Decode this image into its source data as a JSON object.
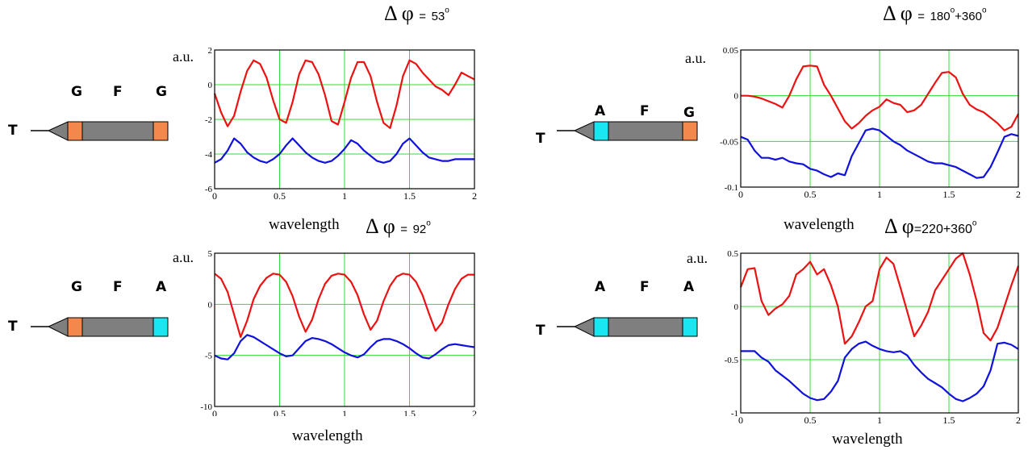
{
  "colors": {
    "red": "#ee1111",
    "blue": "#1111dd",
    "grid": "#33dd33",
    "orange": "#f4874b",
    "cyan": "#19e6f0",
    "body": "#7f7f7f"
  },
  "panels": [
    {
      "id": "p1",
      "molecule": {
        "end": "T",
        "labels": [
          "G",
          "F",
          "G"
        ],
        "left_block": "orange",
        "right_block": "orange"
      },
      "phase": {
        "symbol": "Δ φ",
        "eq": "=",
        "value": "53",
        "deg": "o"
      },
      "ylabel": "a.u.",
      "xlabel": "wavelength",
      "chart_data": {
        "type": "line",
        "xlim": [
          0,
          2
        ],
        "ylim": [
          -6,
          2
        ],
        "xticks": [
          "0",
          "0.5",
          "1",
          "1.5",
          "2"
        ],
        "yticks": [
          "2",
          "0",
          "-2",
          "-4",
          "-6"
        ],
        "ytick_values": [
          2,
          0,
          -2,
          -4,
          -6
        ],
        "grid": true,
        "series": [
          {
            "color": "red",
            "x": [
              0,
              0.05,
              0.1,
              0.15,
              0.2,
              0.25,
              0.3,
              0.35,
              0.4,
              0.45,
              0.5,
              0.55,
              0.6,
              0.65,
              0.7,
              0.75,
              0.8,
              0.85,
              0.9,
              0.95,
              1.0,
              1.05,
              1.1,
              1.15,
              1.2,
              1.25,
              1.3,
              1.35,
              1.4,
              1.45,
              1.5,
              1.55,
              1.6,
              1.65,
              1.7,
              1.75,
              1.8,
              1.85,
              1.9,
              1.95,
              2.0
            ],
            "y": [
              -0.5,
              -1.6,
              -2.4,
              -1.8,
              -0.4,
              0.8,
              1.4,
              1.2,
              0.4,
              -0.9,
              -2.0,
              -2.2,
              -1.0,
              0.6,
              1.4,
              1.3,
              0.6,
              -0.6,
              -2.1,
              -2.3,
              -1.0,
              0.4,
              1.3,
              1.3,
              0.5,
              -1.0,
              -2.2,
              -2.5,
              -1.2,
              0.5,
              1.4,
              1.2,
              0.7,
              0.3,
              -0.1,
              -0.3,
              -0.6,
              0.0,
              0.7,
              0.5,
              0.3
            ]
          },
          {
            "color": "blue",
            "x": [
              0,
              0.05,
              0.1,
              0.15,
              0.2,
              0.25,
              0.3,
              0.35,
              0.4,
              0.45,
              0.5,
              0.55,
              0.6,
              0.65,
              0.7,
              0.75,
              0.8,
              0.85,
              0.9,
              0.95,
              1.0,
              1.05,
              1.1,
              1.15,
              1.2,
              1.25,
              1.3,
              1.35,
              1.4,
              1.45,
              1.5,
              1.55,
              1.6,
              1.65,
              1.7,
              1.75,
              1.8,
              1.85,
              1.9,
              1.95,
              2.0
            ],
            "y": [
              -4.5,
              -4.3,
              -3.8,
              -3.1,
              -3.4,
              -3.9,
              -4.2,
              -4.4,
              -4.5,
              -4.3,
              -4.0,
              -3.5,
              -3.1,
              -3.5,
              -3.9,
              -4.2,
              -4.4,
              -4.5,
              -4.4,
              -4.1,
              -3.7,
              -3.2,
              -3.4,
              -3.8,
              -4.1,
              -4.4,
              -4.5,
              -4.4,
              -4.0,
              -3.4,
              -3.1,
              -3.5,
              -3.9,
              -4.2,
              -4.3,
              -4.4,
              -4.4,
              -4.3,
              -4.3,
              -4.3,
              -4.3
            ]
          }
        ]
      }
    },
    {
      "id": "p2",
      "molecule": {
        "end": "T",
        "labels": [
          "A",
          "F",
          "G"
        ],
        "left_block": "cyan",
        "right_block": "orange"
      },
      "phase": {
        "symbol": "Δ φ",
        "eq": "=",
        "value": "180",
        "deg": "o",
        "extra": "+360",
        "extra_deg": "o"
      },
      "ylabel": "a.u.",
      "xlabel": "wavelength",
      "chart_data": {
        "type": "line",
        "xlim": [
          0,
          2
        ],
        "ylim": [
          -0.1,
          0.05
        ],
        "xticks": [
          "0",
          "0.5",
          "1",
          "1.5",
          "2"
        ],
        "yticks": [
          "0.05",
          "0",
          "-0.05",
          "-0.1"
        ],
        "ytick_values": [
          0.05,
          0,
          -0.05,
          -0.1
        ],
        "grid": true,
        "series": [
          {
            "color": "red",
            "x": [
              0,
              0.05,
              0.1,
              0.15,
              0.2,
              0.25,
              0.3,
              0.35,
              0.4,
              0.45,
              0.5,
              0.55,
              0.6,
              0.65,
              0.7,
              0.75,
              0.8,
              0.85,
              0.9,
              0.95,
              1.0,
              1.05,
              1.1,
              1.15,
              1.2,
              1.25,
              1.3,
              1.35,
              1.4,
              1.45,
              1.5,
              1.55,
              1.6,
              1.65,
              1.7,
              1.75,
              1.8,
              1.85,
              1.9,
              1.95,
              2.0
            ],
            "y": [
              0.0,
              0.0,
              -0.001,
              -0.003,
              -0.006,
              -0.009,
              -0.013,
              0.0,
              0.018,
              0.032,
              0.033,
              0.032,
              0.012,
              0.0,
              -0.014,
              -0.028,
              -0.036,
              -0.03,
              -0.022,
              -0.016,
              -0.012,
              -0.004,
              -0.008,
              -0.01,
              -0.018,
              -0.016,
              -0.01,
              0.002,
              0.014,
              0.025,
              0.026,
              0.02,
              0.002,
              -0.01,
              -0.015,
              -0.018,
              -0.024,
              -0.03,
              -0.038,
              -0.034,
              -0.02
            ]
          },
          {
            "color": "blue",
            "x": [
              0,
              0.05,
              0.1,
              0.15,
              0.2,
              0.25,
              0.3,
              0.35,
              0.4,
              0.45,
              0.5,
              0.55,
              0.6,
              0.65,
              0.7,
              0.75,
              0.8,
              0.85,
              0.9,
              0.95,
              1.0,
              1.05,
              1.1,
              1.15,
              1.2,
              1.25,
              1.3,
              1.35,
              1.4,
              1.45,
              1.5,
              1.55,
              1.6,
              1.65,
              1.7,
              1.75,
              1.8,
              1.85,
              1.9,
              1.95,
              2.0
            ],
            "y": [
              -0.045,
              -0.048,
              -0.06,
              -0.068,
              -0.068,
              -0.07,
              -0.068,
              -0.072,
              -0.074,
              -0.075,
              -0.08,
              -0.082,
              -0.086,
              -0.089,
              -0.085,
              -0.087,
              -0.066,
              -0.052,
              -0.038,
              -0.036,
              -0.038,
              -0.044,
              -0.05,
              -0.054,
              -0.06,
              -0.064,
              -0.068,
              -0.072,
              -0.074,
              -0.074,
              -0.076,
              -0.078,
              -0.082,
              -0.086,
              -0.09,
              -0.089,
              -0.078,
              -0.062,
              -0.045,
              -0.042,
              -0.044
            ]
          }
        ]
      }
    },
    {
      "id": "p3",
      "molecule": {
        "end": "T",
        "labels": [
          "G",
          "F",
          "A"
        ],
        "left_block": "orange",
        "right_block": "cyan"
      },
      "phase": {
        "symbol": "Δ φ",
        "eq": "=",
        "value": "92",
        "deg": "o"
      },
      "ylabel": "a.u.",
      "xlabel": "wavelength",
      "chart_data": {
        "type": "line",
        "xlim": [
          0,
          2
        ],
        "ylim": [
          -10,
          5
        ],
        "xticks": [
          "0",
          "0.5",
          "1",
          "1.5",
          "2"
        ],
        "yticks": [
          "5",
          "0",
          "-5",
          "-10"
        ],
        "ytick_values": [
          5,
          0,
          -5,
          -10
        ],
        "grid": true,
        "series": [
          {
            "color": "red",
            "x": [
              0,
              0.05,
              0.1,
              0.15,
              0.2,
              0.25,
              0.3,
              0.35,
              0.4,
              0.45,
              0.5,
              0.55,
              0.6,
              0.65,
              0.7,
              0.75,
              0.8,
              0.85,
              0.9,
              0.95,
              1.0,
              1.05,
              1.1,
              1.15,
              1.2,
              1.25,
              1.3,
              1.35,
              1.4,
              1.45,
              1.5,
              1.55,
              1.6,
              1.65,
              1.7,
              1.75,
              1.8,
              1.85,
              1.9,
              1.95,
              2.0
            ],
            "y": [
              3.0,
              2.5,
              1.2,
              -1.0,
              -3.2,
              -1.6,
              0.5,
              1.8,
              2.6,
              3.0,
              2.9,
              2.2,
              0.8,
              -1.2,
              -2.7,
              -1.5,
              0.5,
              2.0,
              2.8,
              3.0,
              2.9,
              2.2,
              0.9,
              -1.0,
              -2.5,
              -1.6,
              0.3,
              1.8,
              2.7,
              3.0,
              2.9,
              2.2,
              0.9,
              -0.9,
              -2.6,
              -1.8,
              0.0,
              1.5,
              2.5,
              2.9,
              2.9
            ]
          },
          {
            "color": "blue",
            "x": [
              0,
              0.05,
              0.1,
              0.15,
              0.2,
              0.25,
              0.3,
              0.35,
              0.4,
              0.45,
              0.5,
              0.55,
              0.6,
              0.65,
              0.7,
              0.75,
              0.8,
              0.85,
              0.9,
              0.95,
              1.0,
              1.05,
              1.1,
              1.15,
              1.2,
              1.25,
              1.3,
              1.35,
              1.4,
              1.45,
              1.5,
              1.55,
              1.6,
              1.65,
              1.7,
              1.75,
              1.8,
              1.85,
              1.9,
              1.95,
              2.0
            ],
            "y": [
              -5.0,
              -5.3,
              -5.4,
              -4.8,
              -3.6,
              -3.0,
              -3.2,
              -3.6,
              -4.0,
              -4.4,
              -4.8,
              -5.1,
              -5.0,
              -4.3,
              -3.6,
              -3.3,
              -3.4,
              -3.6,
              -3.9,
              -4.3,
              -4.7,
              -5.0,
              -5.2,
              -4.9,
              -4.2,
              -3.6,
              -3.4,
              -3.4,
              -3.6,
              -3.9,
              -4.3,
              -4.8,
              -5.2,
              -5.3,
              -4.9,
              -4.4,
              -4.0,
              -3.9,
              -4.0,
              -4.1,
              -4.2
            ]
          }
        ]
      }
    },
    {
      "id": "p4",
      "molecule": {
        "end": "T",
        "labels": [
          "A",
          "F",
          "A"
        ],
        "left_block": "cyan",
        "right_block": "cyan"
      },
      "phase": {
        "symbol": "Δ φ",
        "eq": "=",
        "value": "220+360",
        "deg": "o"
      },
      "ylabel": "a.u.",
      "xlabel": "wavelength",
      "chart_data": {
        "type": "line",
        "xlim": [
          0,
          2
        ],
        "ylim": [
          -1,
          0.5
        ],
        "xticks": [
          "0",
          "0.5",
          "1",
          "1.5",
          "2"
        ],
        "yticks": [
          "0.5",
          "0",
          "-0.5",
          "-1"
        ],
        "ytick_values": [
          0.5,
          0,
          -0.5,
          -1
        ],
        "grid": true,
        "series": [
          {
            "color": "red",
            "x": [
              0,
              0.05,
              0.1,
              0.15,
              0.2,
              0.25,
              0.3,
              0.35,
              0.4,
              0.45,
              0.5,
              0.55,
              0.6,
              0.65,
              0.7,
              0.75,
              0.8,
              0.85,
              0.9,
              0.95,
              1.0,
              1.05,
              1.1,
              1.15,
              1.2,
              1.25,
              1.3,
              1.35,
              1.4,
              1.45,
              1.5,
              1.55,
              1.6,
              1.65,
              1.7,
              1.75,
              1.8,
              1.85,
              1.9,
              1.95,
              2.0
            ],
            "y": [
              0.18,
              0.35,
              0.36,
              0.05,
              -0.08,
              -0.02,
              0.02,
              0.1,
              0.3,
              0.35,
              0.42,
              0.3,
              0.35,
              0.2,
              0.0,
              -0.35,
              -0.28,
              -0.15,
              0.0,
              0.05,
              0.35,
              0.46,
              0.4,
              0.18,
              -0.05,
              -0.28,
              -0.18,
              -0.05,
              0.15,
              0.25,
              0.35,
              0.45,
              0.5,
              0.3,
              0.05,
              -0.25,
              -0.32,
              -0.2,
              0.0,
              0.2,
              0.38
            ]
          },
          {
            "color": "blue",
            "x": [
              0,
              0.05,
              0.1,
              0.15,
              0.2,
              0.25,
              0.3,
              0.35,
              0.4,
              0.45,
              0.5,
              0.55,
              0.6,
              0.65,
              0.7,
              0.75,
              0.8,
              0.85,
              0.9,
              0.95,
              1.0,
              1.05,
              1.1,
              1.15,
              1.2,
              1.25,
              1.3,
              1.35,
              1.4,
              1.45,
              1.5,
              1.55,
              1.6,
              1.65,
              1.7,
              1.75,
              1.8,
              1.85,
              1.9,
              1.95,
              2.0
            ],
            "y": [
              -0.42,
              -0.42,
              -0.42,
              -0.48,
              -0.52,
              -0.6,
              -0.65,
              -0.7,
              -0.76,
              -0.82,
              -0.86,
              -0.88,
              -0.87,
              -0.8,
              -0.7,
              -0.48,
              -0.4,
              -0.35,
              -0.33,
              -0.37,
              -0.4,
              -0.42,
              -0.43,
              -0.42,
              -0.46,
              -0.55,
              -0.62,
              -0.68,
              -0.72,
              -0.76,
              -0.82,
              -0.87,
              -0.89,
              -0.86,
              -0.82,
              -0.75,
              -0.6,
              -0.35,
              -0.34,
              -0.36,
              -0.4
            ]
          }
        ]
      }
    }
  ]
}
